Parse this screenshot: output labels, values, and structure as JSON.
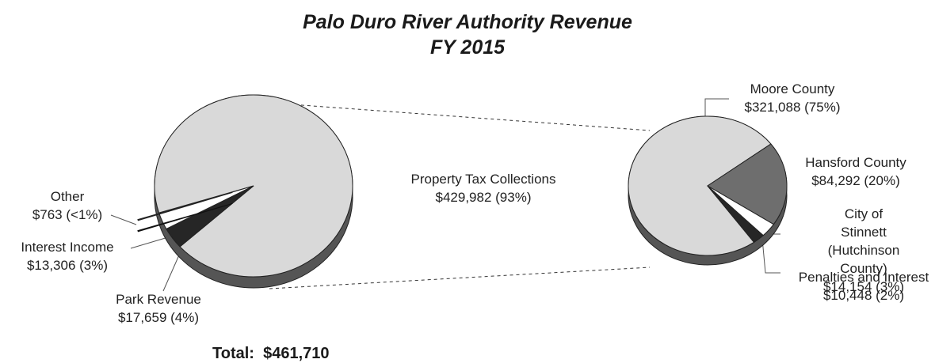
{
  "title": "Palo Duro River Authority Revenue",
  "subtitle": "FY 2015",
  "total_label": "Total:",
  "total": 461710,
  "total_value_label": "$461,710",
  "chart_data": [
    {
      "type": "pie",
      "categories": [
        "Property Tax Collections",
        "Park Revenue",
        "Interest Income",
        "Other"
      ],
      "values": [
        429982,
        17659,
        13306,
        763
      ],
      "value_labels": [
        "$429,982 (93%)",
        "$17,659 (4%)",
        "$13,306 (3%)",
        "$763 (<1%)"
      ],
      "colors": [
        "#d9d9d9",
        "#262626",
        "#ffffff",
        "#262626"
      ]
    },
    {
      "type": "pie",
      "categories": [
        "Moore County",
        "Hansford County",
        "City of Stinnett (Hutchinson County)",
        "Penalties and Interest"
      ],
      "values": [
        321088,
        84292,
        14154,
        10448
      ],
      "value_labels": [
        "$321,088 (75%)",
        "$84,292 (20%)",
        "$14,154 (3%)",
        "$10,448 (2%)"
      ],
      "colors": [
        "#d9d9d9",
        "#6e6e6e",
        "#ffffff",
        "#262626"
      ]
    }
  ]
}
